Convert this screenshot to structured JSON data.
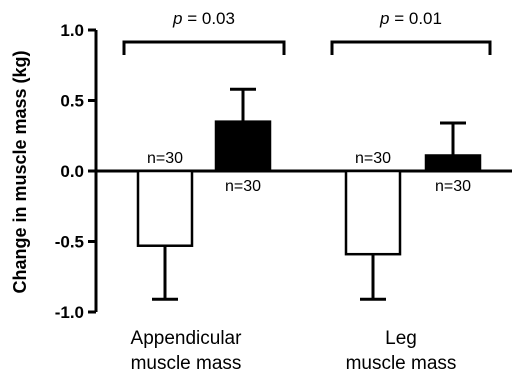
{
  "chart_data": {
    "type": "bar",
    "ylabel": "Change in muscle mass (kg)",
    "ylim": [
      -1.0,
      1.0
    ],
    "yticks": [
      {
        "value": 1.0,
        "label": "1.0"
      },
      {
        "value": 0.5,
        "label": "0.5"
      },
      {
        "value": 0.0,
        "label": "0.0"
      },
      {
        "value": -0.5,
        "label": "-0.5"
      },
      {
        "value": -1.0,
        "label": "-1.0"
      }
    ],
    "categories": [
      {
        "line1": "Appendicular",
        "line2": "muscle mass"
      },
      {
        "line1": "Leg",
        "line2": "muscle mass"
      }
    ],
    "series": [
      {
        "fill": "#ffffff",
        "values": [
          -0.53,
          -0.59
        ],
        "error": [
          0.38,
          0.32
        ],
        "n_labels": [
          "n=30",
          "n=30"
        ]
      },
      {
        "fill": "#000000",
        "values": [
          0.35,
          0.11
        ],
        "error": [
          0.23,
          0.23
        ],
        "n_labels": [
          "n=30",
          "n=30"
        ]
      }
    ],
    "significance": [
      {
        "prefix": "p",
        "text": " = 0.03"
      },
      {
        "prefix": "p",
        "text": " = 0.01"
      }
    ],
    "grid": false
  }
}
